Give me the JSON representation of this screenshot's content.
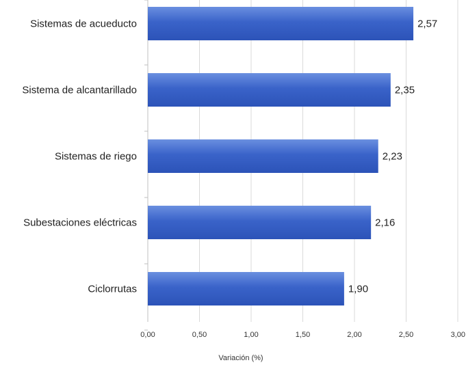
{
  "chart_data": {
    "type": "bar",
    "orientation": "horizontal",
    "categories": [
      "Sistemas de acueducto",
      "Sistema de alcantarillado",
      "Sistemas de riego",
      "Subestaciones eléctricas",
      "Ciclorrutas"
    ],
    "values": [
      2.57,
      2.35,
      2.23,
      2.16,
      1.9
    ],
    "value_labels": [
      "2,57",
      "2,35",
      "2,23",
      "2,16",
      "1,90"
    ],
    "xlabel": "Variación (%)",
    "ylabel": "",
    "title": "",
    "xlim": [
      0,
      3
    ],
    "x_ticks": [
      0,
      0.5,
      1,
      1.5,
      2,
      2.5,
      3
    ],
    "x_tick_labels": [
      "0,00",
      "0,50",
      "1,00",
      "1,50",
      "2,00",
      "2,50",
      "3,00"
    ],
    "grid": "vertical",
    "legend": "none",
    "colors": {
      "bar_top": "#6a8fe0",
      "bar_mid": "#3a63c9",
      "bar_bottom": "#2c53b8",
      "grid": "#d9d9d9",
      "axis": "#bfbfbf"
    }
  }
}
